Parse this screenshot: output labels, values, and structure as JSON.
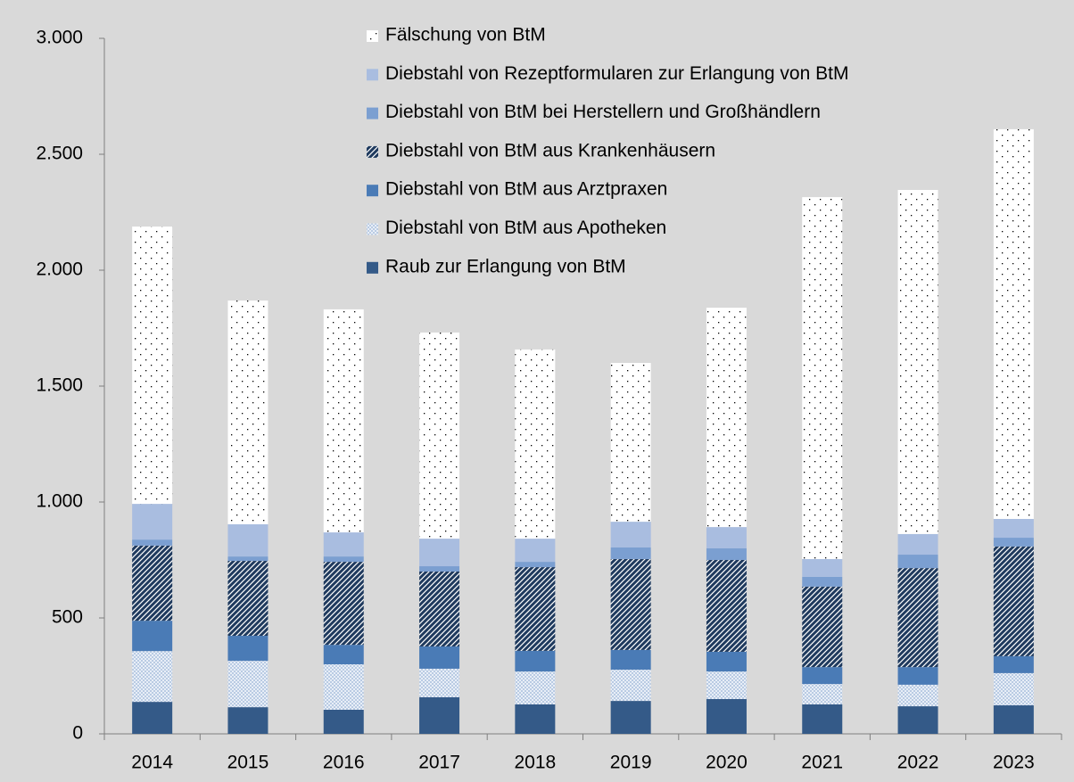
{
  "chart_data": {
    "type": "stacked_bar",
    "categories": [
      "2014",
      "2015",
      "2016",
      "2017",
      "2018",
      "2019",
      "2020",
      "2021",
      "2022",
      "2023"
    ],
    "series": [
      {
        "name": "Raub zur Erlangung von BtM",
        "color": "#345a88",
        "values": [
          138,
          115,
          104,
          158,
          127,
          142,
          150,
          127,
          119,
          123
        ]
      },
      {
        "name": "Diebstahl von BtM aus Apotheken",
        "color": "#b9cbe3",
        "pattern": "grid",
        "values": [
          219,
          200,
          196,
          123,
          142,
          135,
          119,
          88,
          93,
          139
        ]
      },
      {
        "name": "Diebstahl von BtM aus Arztpraxen",
        "color": "#4a7bb6",
        "values": [
          131,
          108,
          84,
          96,
          89,
          85,
          85,
          73,
          76,
          73
        ]
      },
      {
        "name": "Diebstahl von BtM aus Krankenhäusern",
        "color": "#1f3a5e",
        "pattern": "diagonal",
        "values": [
          324,
          323,
          358,
          323,
          361,
          392,
          396,
          347,
          427,
          473
        ]
      },
      {
        "name": "Diebstahl von BtM bei Herstellern und Großhändlern",
        "color": "#7b9fd1",
        "values": [
          26,
          19,
          23,
          23,
          23,
          50,
          50,
          42,
          58,
          38
        ]
      },
      {
        "name": "Diebstahl von Rezeptformularen zur Erlangung von BtM",
        "color": "#a9bde0",
        "values": [
          154,
          139,
          104,
          119,
          100,
          111,
          92,
          77,
          89,
          81
        ]
      },
      {
        "name": "Fälschung von BtM",
        "color": "#ffffff",
        "pattern": "dots",
        "values": [
          1196,
          965,
          962,
          889,
          816,
          685,
          946,
          1561,
          1484,
          1681
        ]
      }
    ],
    "ylim": [
      0,
      3000
    ],
    "yticks": [
      0,
      500,
      {
        "value": 1000,
        "label": "1.000"
      },
      {
        "value": 1500,
        "label": "1.500"
      },
      {
        "value": 2000,
        "label": "2.000"
      },
      {
        "value": 2500,
        "label": "2.500"
      },
      {
        "value": 3000,
        "label": "3.000"
      }
    ],
    "grid": false,
    "legend": "top"
  }
}
